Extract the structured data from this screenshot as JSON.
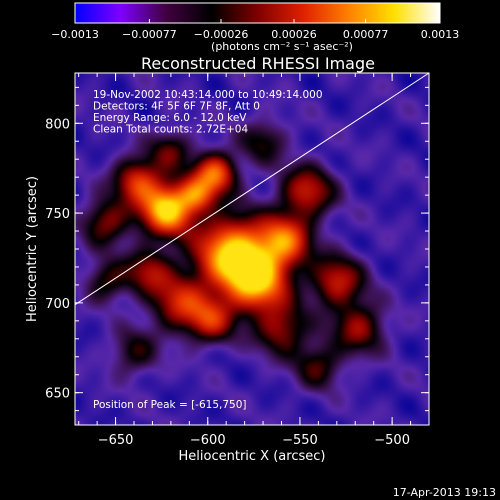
{
  "chart_data": {
    "type": "heatmap",
    "title": "Reconstructed RHESSI Image",
    "xlabel": "Heliocentric X (arcsec)",
    "ylabel": "Heliocentric Y (arcsec)",
    "xlim": [
      -672,
      -480
    ],
    "ylim": [
      632,
      828
    ],
    "x_ticks": [
      {
        "value": -650,
        "label": "−650"
      },
      {
        "value": -600,
        "label": "−600"
      },
      {
        "value": -550,
        "label": "−550"
      },
      {
        "value": -500,
        "label": "−500"
      }
    ],
    "y_ticks": [
      {
        "value": 800,
        "label": "800"
      },
      {
        "value": 750,
        "label": "750"
      },
      {
        "value": 700,
        "label": "700"
      },
      {
        "value": 650,
        "label": "650"
      }
    ],
    "colorbar": {
      "range": [
        -0.0013,
        0.0013
      ],
      "ticks": [
        {
          "value": -0.0013,
          "label": "−0.0013"
        },
        {
          "value": -0.00077,
          "label": "−0.00077"
        },
        {
          "value": -0.00026,
          "label": "−0.00026"
        },
        {
          "value": 0.00026,
          "label": "0.00026"
        },
        {
          "value": 0.00077,
          "label": "0.00077"
        },
        {
          "value": 0.0013,
          "label": "0.0013"
        }
      ],
      "unit_label": "(photons cm⁻² s⁻¹ asec⁻²)",
      "colors": [
        "#0000ff",
        "#7f00ff",
        "#400040",
        "#000000",
        "#7f0000",
        "#e02000",
        "#ff8000",
        "#ffe000",
        "#ffffff"
      ]
    },
    "info_lines": [
      "19-Nov-2002 10:43:14.000 to 10:49:14.000",
      "Detectors: 4F 5F 6F 7F 8F, Att 0",
      "Energy Range: 6.0 - 12.0 keV",
      "Clean     Total counts: 2.72E+04"
    ],
    "peak_label": "Position of Peak = [-615,750]",
    "peak": [
      -615,
      750
    ],
    "limb_line": [
      [
        -672,
        699
      ],
      [
        -480,
        828
      ]
    ],
    "sources": [
      {
        "x": -622,
        "y": 752,
        "sigma": 10,
        "amp": 1.0
      },
      {
        "x": -606,
        "y": 760,
        "sigma": 7,
        "amp": 0.55
      },
      {
        "x": -638,
        "y": 768,
        "sigma": 9,
        "amp": 0.6
      },
      {
        "x": -596,
        "y": 772,
        "sigma": 8,
        "amp": 0.75
      },
      {
        "x": -587,
        "y": 728,
        "sigma": 14,
        "amp": 0.95
      },
      {
        "x": -573,
        "y": 712,
        "sigma": 12,
        "amp": 0.85
      },
      {
        "x": -558,
        "y": 735,
        "sigma": 10,
        "amp": 0.7
      },
      {
        "x": -546,
        "y": 762,
        "sigma": 10,
        "amp": 0.55
      },
      {
        "x": -530,
        "y": 712,
        "sigma": 10,
        "amp": 0.55
      },
      {
        "x": -518,
        "y": 686,
        "sigma": 10,
        "amp": 0.45
      },
      {
        "x": -615,
        "y": 700,
        "sigma": 11,
        "amp": 0.55
      },
      {
        "x": -632,
        "y": 718,
        "sigma": 9,
        "amp": 0.45
      },
      {
        "x": -655,
        "y": 745,
        "sigma": 9,
        "amp": 0.45
      },
      {
        "x": -598,
        "y": 690,
        "sigma": 9,
        "amp": 0.5
      },
      {
        "x": -560,
        "y": 685,
        "sigma": 10,
        "amp": 0.45
      },
      {
        "x": -540,
        "y": 665,
        "sigma": 9,
        "amp": 0.35
      },
      {
        "x": -620,
        "y": 785,
        "sigma": 8,
        "amp": 0.35
      },
      {
        "x": -570,
        "y": 790,
        "sigma": 9,
        "amp": 0.3
      },
      {
        "x": -640,
        "y": 672,
        "sigma": 9,
        "amp": 0.3
      },
      {
        "x": -655,
        "y": 712,
        "sigma": 8,
        "amp": 0.35
      }
    ]
  },
  "footer": {
    "timestamp": "17-Apr-2013 19:13"
  }
}
